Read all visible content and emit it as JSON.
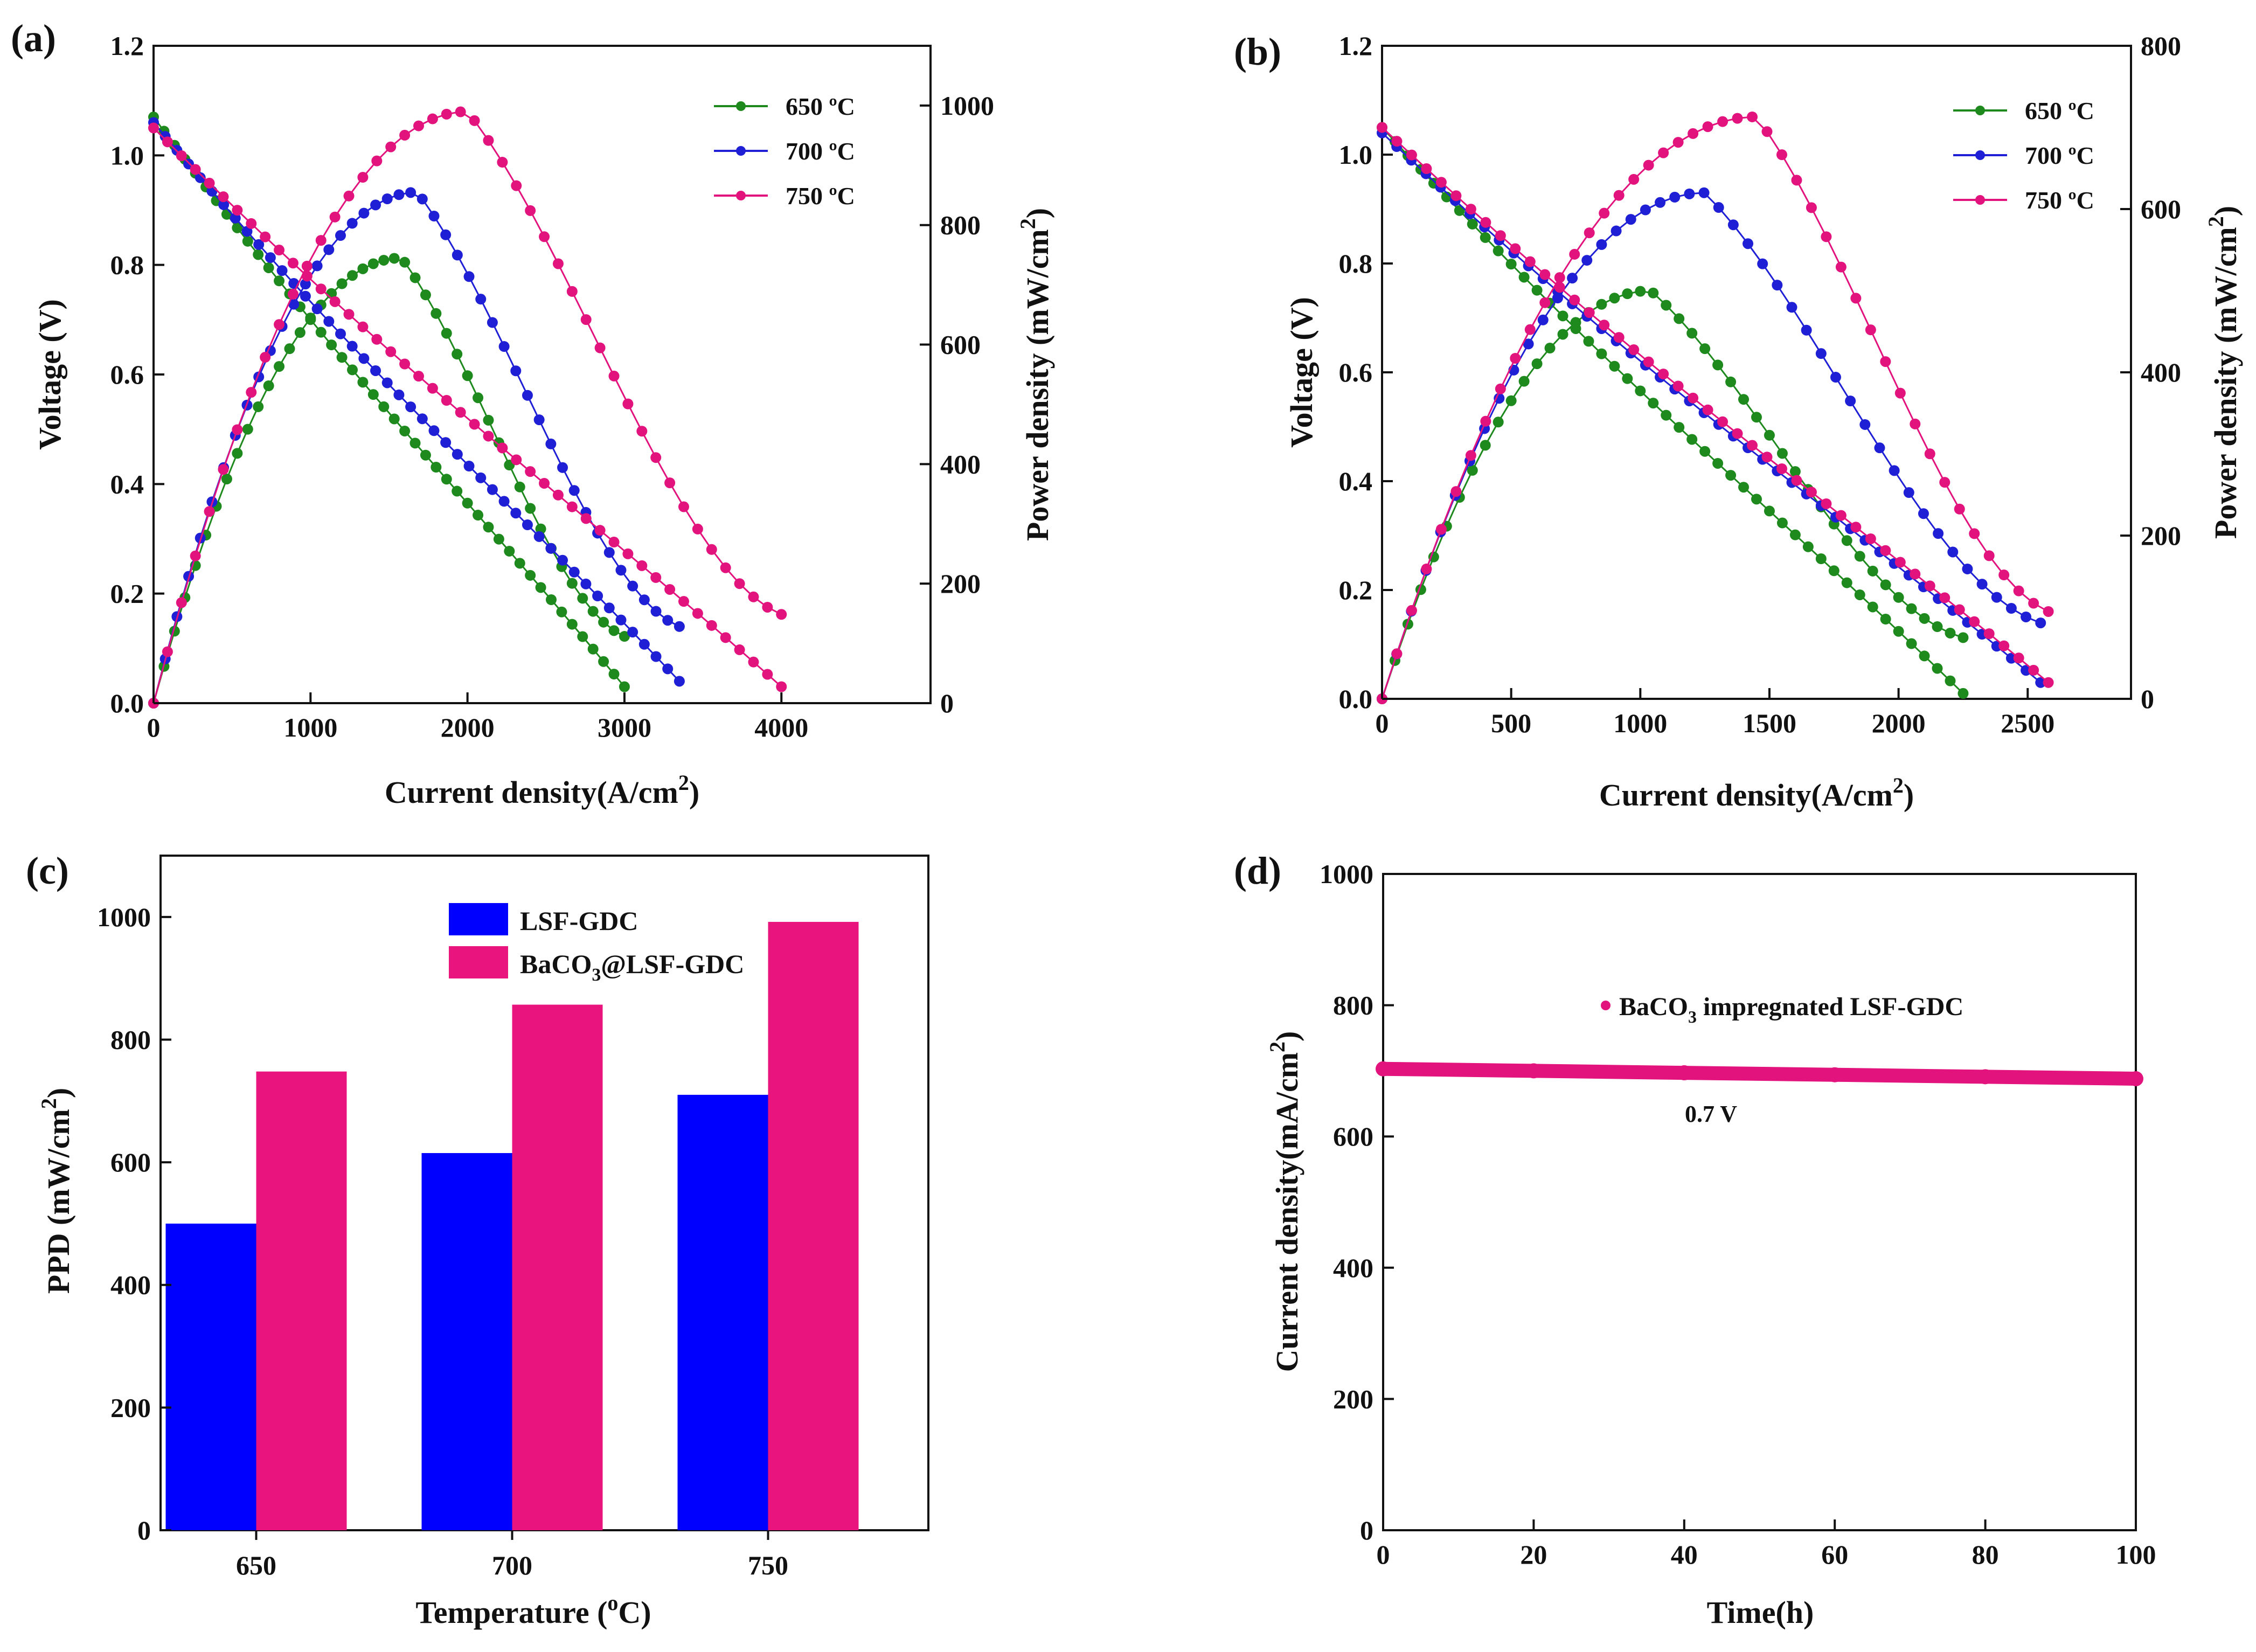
{
  "chart_data": [
    {
      "panel": "(a)",
      "type": "line",
      "xlabel": "Current density(A/cm",
      "xlabel_sup": "2",
      "xlabel_end": ")",
      "ylabel": "Voltage (V)",
      "y2label": "Power density (mW/cm",
      "y2label_sup": "2",
      "y2label_end": ")",
      "xlim": [
        0,
        4950
      ],
      "ylim": [
        0,
        1.2
      ],
      "y2lim": [
        0,
        1100
      ],
      "xticks": [
        "0",
        "1000",
        "2000",
        "3000",
        "4000"
      ],
      "yticks": [
        "0.0",
        "0.2",
        "0.4",
        "0.6",
        "0.8",
        "1.0",
        "1.2"
      ],
      "y2ticks": [
        "0",
        "200",
        "400",
        "600",
        "800",
        "1000"
      ],
      "legend": {
        "position": "top-right",
        "entries": [
          "650 ºC",
          "700 ºC",
          "750 ºC"
        ],
        "unit_sup": "o",
        "unit": "C"
      },
      "series": [
        {
          "name": "650 ºC",
          "color": "#1e8a1e",
          "voc": 1.07,
          "imax": 3000,
          "vend": 0.03,
          "pmax": 745,
          "ipeak": 1580
        },
        {
          "name": "700 ºC",
          "color": "#1f1fd6",
          "voc": 1.06,
          "imax": 3350,
          "vend": 0.04,
          "pmax": 855,
          "ipeak": 1680
        },
        {
          "name": "750 ºC",
          "color": "#e3137d",
          "voc": 1.05,
          "imax": 4000,
          "vend": 0.03,
          "pmax": 990,
          "ipeak": 2000
        }
      ]
    },
    {
      "panel": "(b)",
      "type": "line",
      "xlabel": "Current density(A/cm",
      "xlabel_sup": "2",
      "xlabel_end": ")",
      "ylabel": "Voltage (V)",
      "y2label": "Power density  (mW/cm",
      "y2label_sup": "2",
      "y2label_end": ")",
      "xlim": [
        0,
        2900
      ],
      "ylim": [
        0,
        1.2
      ],
      "y2lim": [
        0,
        800
      ],
      "xticks": [
        "0",
        "500",
        "1000",
        "1500",
        "2000",
        "2500"
      ],
      "yticks": [
        "0.0",
        "0.2",
        "0.4",
        "0.6",
        "0.8",
        "1.0",
        "1.2"
      ],
      "y2ticks": [
        "0",
        "200",
        "400",
        "600",
        "800"
      ],
      "legend": {
        "position": "top-right",
        "entries": [
          "650 ºC",
          "700 ºC",
          "750 ºC"
        ],
        "unit_sup": "o",
        "unit": "C"
      },
      "series": [
        {
          "name": "650 ºC",
          "color": "#1e8a1e",
          "voc": 1.05,
          "imax": 2250,
          "vend": 0.01,
          "pmax": 500,
          "ipeak": 1040
        },
        {
          "name": "700 ºC",
          "color": "#1f1fd6",
          "voc": 1.04,
          "imax": 2550,
          "vend": 0.03,
          "pmax": 620,
          "ipeak": 1250
        },
        {
          "name": "750 ºC",
          "color": "#e3137d",
          "voc": 1.05,
          "imax": 2580,
          "vend": 0.03,
          "pmax": 713,
          "ipeak": 1450
        }
      ]
    },
    {
      "panel": "(c)",
      "type": "bar",
      "xlabel": "Temperature (",
      "xlabel_sup": "o",
      "xlabel_end": "C)",
      "ylabel": "PPD (mW/cm",
      "ylabel_sup": "2",
      "ylabel_end": ")",
      "ylim": [
        0,
        1100
      ],
      "yticks": [
        "0",
        "200",
        "400",
        "600",
        "800",
        "1000"
      ],
      "categories": [
        "650",
        "700",
        "750"
      ],
      "legend": {
        "position": "top-center",
        "lsf": "LSF-GDC",
        "ba_pre": "BaCO",
        "ba_sub": "3",
        "ba_post": "@LSF-GDC"
      },
      "series": [
        {
          "name": "LSF-GDC",
          "color": "#0000ff",
          "values": [
            500,
            615,
            710
          ]
        },
        {
          "name": "BaCO3@LSF-GDC",
          "color": "#ea147e",
          "values": [
            748,
            857,
            992
          ]
        }
      ]
    },
    {
      "panel": "(d)",
      "type": "line",
      "xlabel": "Time(h)",
      "ylabel": "Current density(mA/cm",
      "ylabel_sup": "2",
      "ylabel_end": ")",
      "xlim": [
        0,
        100
      ],
      "ylim": [
        0,
        1000
      ],
      "xticks": [
        "0",
        "20",
        "40",
        "60",
        "80",
        "100"
      ],
      "yticks": [
        "0",
        "200",
        "400",
        "600",
        "800",
        "1000"
      ],
      "legend": {
        "position": "top-center",
        "pre": "BaCO",
        "sub": "3",
        "post": " impregnated LSF-GDC"
      },
      "annotation": "0.7 V",
      "series": [
        {
          "name": "BaCO3 impregnated LSF-GDC",
          "color": "#e3137d",
          "x": [
            0,
            20,
            40,
            60,
            80,
            100
          ],
          "values": [
            703,
            700,
            697,
            694,
            691,
            688
          ]
        }
      ]
    }
  ]
}
